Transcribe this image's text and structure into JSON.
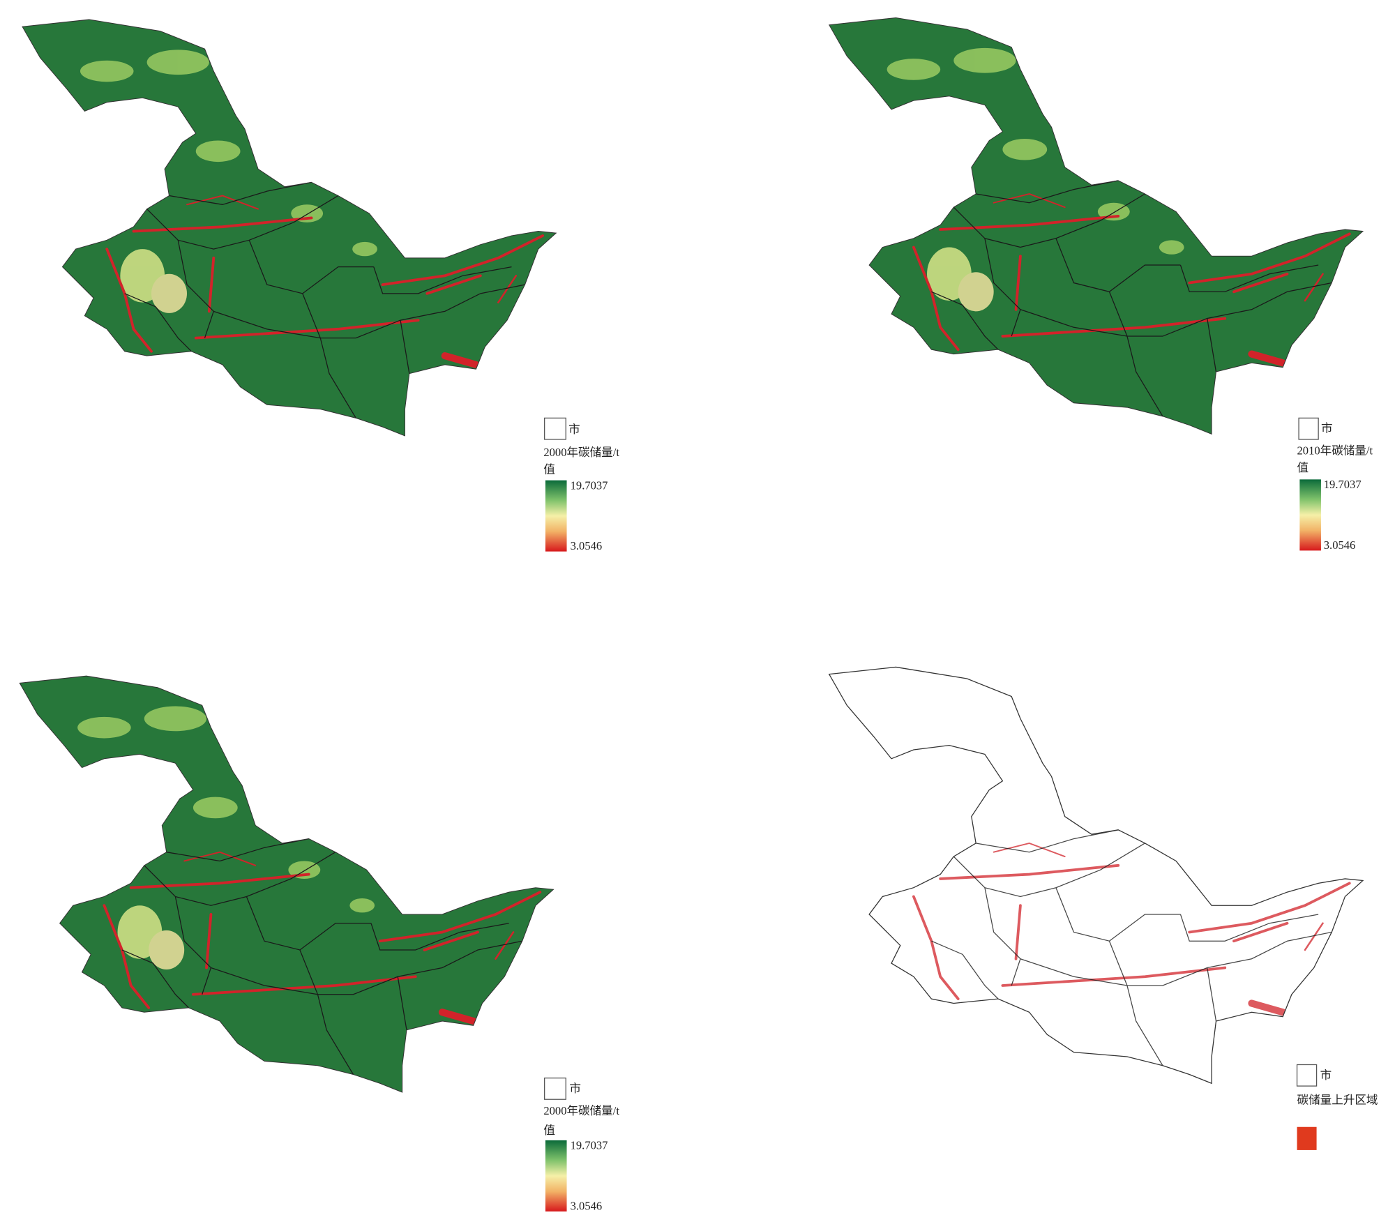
{
  "panels": [
    {
      "legend": {
        "boundary": "市",
        "title": "2000年碳储量/t",
        "value_label": "值",
        "max": "19.7037",
        "min": "3.0546"
      }
    },
    {
      "legend": {
        "boundary": "市",
        "title": "2010年碳储量/t",
        "value_label": "值",
        "max": "19.7037",
        "min": "3.0546"
      }
    },
    {
      "legend": {
        "boundary": "市",
        "title": "2000年碳储量/t",
        "value_label": "值",
        "max": "19.7037",
        "min": "3.0546"
      }
    },
    {
      "legend": {
        "boundary": "市",
        "title": "碳储量上升区域"
      }
    }
  ]
}
